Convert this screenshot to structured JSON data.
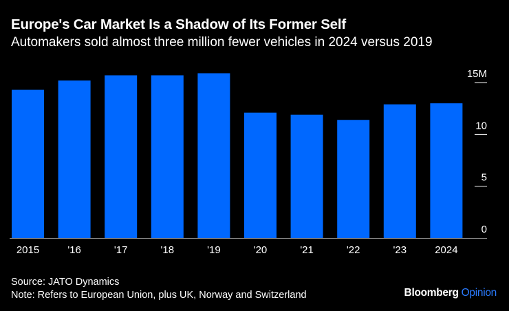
{
  "chart_data": {
    "type": "bar",
    "title": "Europe's Car Market Is a Shadow of Its Former Self",
    "subtitle": "Automakers sold almost three million fewer vehicles in 2024 versus 2019",
    "categories": [
      "2015",
      "'16",
      "'17",
      "'18",
      "'19",
      "'20",
      "'21",
      "'22",
      "'23",
      "2024"
    ],
    "values": [
      14.3,
      15.2,
      15.7,
      15.7,
      15.9,
      12.1,
      11.9,
      11.4,
      12.9,
      13.0
    ],
    "y_ticks": [
      {
        "value": 0,
        "label": "0"
      },
      {
        "value": 5,
        "label": "5"
      },
      {
        "value": 10,
        "label": "10"
      },
      {
        "value": 15,
        "label": "15M"
      }
    ],
    "ylim": [
      0,
      15
    ],
    "y_axis_position": "right",
    "grid": false,
    "bar_color": "#0068ff"
  },
  "footer": {
    "source": "Source: JATO Dynamics",
    "note": "Note: Refers to European Union, plus UK, Norway and Switzerland",
    "logo_brand": "Bloomberg",
    "logo_section": "Opinion"
  }
}
